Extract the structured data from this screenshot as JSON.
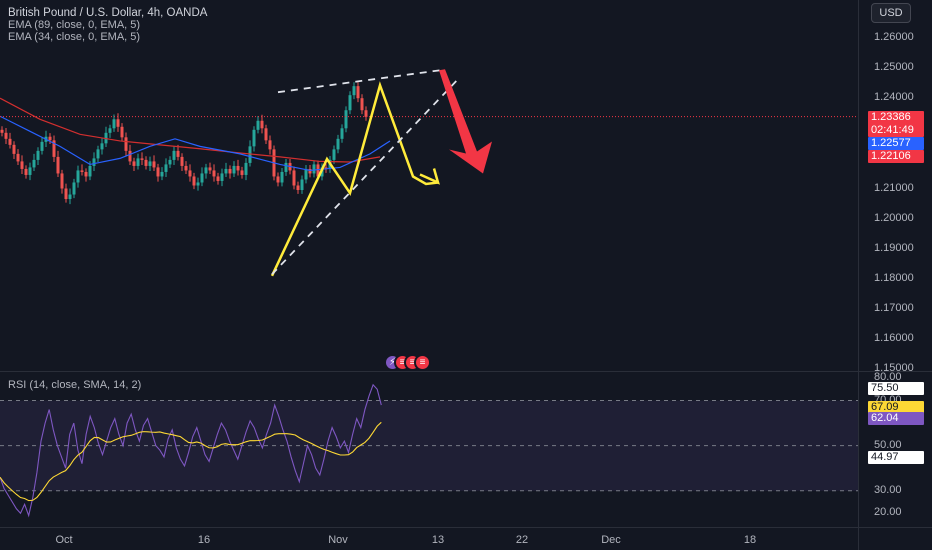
{
  "header": {
    "symbol_title": "British Pound / U.S. Dollar, 4h, OANDA",
    "ema1_label": "EMA (89, close, 0, EMA, 5)",
    "ema2_label": "EMA (34, close, 0, EMA, 5)",
    "rsi_label": "RSI (14, close, SMA, 14, 2)",
    "currency": "USD"
  },
  "colors": {
    "background": "#131722",
    "up_candle": "#26a69a",
    "down_candle": "#ef5350",
    "ema89": "#d32f2f",
    "ema34": "#2962ff",
    "rsi_line": "#7e57c2",
    "rsi_ma": "#fdd835",
    "drawing_yellow": "#ffeb3b",
    "arrow_red": "#f23645"
  },
  "events_icons": [
    "lightning-icon",
    "us-flag-icon",
    "us-flag-icon",
    "us-flag-icon"
  ],
  "chart_data": [
    {
      "type": "candlestick",
      "title": "British Pound / U.S. Dollar, 4h, OANDA",
      "ylim": [
        1.15,
        1.262
      ],
      "y_ticks": [
        "1.26000",
        "1.25000",
        "1.24000",
        "1.23000",
        "1.22000",
        "1.21000",
        "1.20000",
        "1.19000",
        "1.18000",
        "1.17000",
        "1.16000",
        "1.15000"
      ],
      "x_ticks": [
        "Oct",
        "16",
        "Nov",
        "13",
        "22",
        "Dec",
        "18"
      ],
      "price_tags": [
        {
          "label": "1.23386",
          "sub": "02:41:49",
          "value": 1.23386,
          "color": "#f23645"
        },
        {
          "label": "1.22577",
          "value": 1.22577,
          "color": "#2962ff"
        },
        {
          "label": "1.22106",
          "value": 1.22106,
          "color": "#f23645"
        }
      ],
      "series": [
        {
          "name": "EMA (89, close, 0, EMA, 5)",
          "type": "line",
          "x": [
            0,
            40,
            80,
            120,
            160,
            200,
            240,
            280,
            320,
            350,
            380
          ],
          "values": [
            1.24,
            1.233,
            1.228,
            1.2258,
            1.2245,
            1.2232,
            1.2218,
            1.2205,
            1.219,
            1.2188,
            1.2205
          ]
        },
        {
          "name": "EMA (34, close, 0, EMA, 5)",
          "type": "line",
          "x": [
            0,
            30,
            60,
            90,
            120,
            150,
            175,
            200,
            240,
            280,
            310,
            340,
            370,
            390
          ],
          "values": [
            1.234,
            1.229,
            1.224,
            1.218,
            1.22,
            1.224,
            1.2265,
            1.224,
            1.2215,
            1.218,
            1.216,
            1.217,
            1.2215,
            1.2258
          ]
        }
      ],
      "candles_close": [
        1.2285,
        1.2265,
        1.2245,
        1.2215,
        1.219,
        1.2165,
        1.2145,
        1.217,
        1.2195,
        1.2225,
        1.2255,
        1.2272,
        1.226,
        1.2205,
        1.215,
        1.21,
        1.2065,
        1.208,
        1.212,
        1.216,
        1.2155,
        1.214,
        1.2175,
        1.22,
        1.223,
        1.225,
        1.2285,
        1.23,
        1.233,
        1.2305,
        1.227,
        1.2225,
        1.219,
        1.2175,
        1.22,
        1.2195,
        1.2175,
        1.219,
        1.217,
        1.214,
        1.2155,
        1.218,
        1.2195,
        1.2225,
        1.2205,
        1.2175,
        1.216,
        1.214,
        1.211,
        1.212,
        1.215,
        1.217,
        1.216,
        1.214,
        1.2125,
        1.215,
        1.2165,
        1.215,
        1.2175,
        1.216,
        1.2145,
        1.2185,
        1.224,
        1.2295,
        1.2325,
        1.23,
        1.226,
        1.223
      ],
      "drawings": {
        "yellow_zigzag": [
          [
            1.181,
            272
          ],
          [
            1.2198,
            327
          ],
          [
            1.2085,
            350
          ],
          [
            1.2443,
            380
          ],
          [
            1.214,
            413
          ],
          [
            1.2115,
            426
          ],
          [
            1.212,
            438
          ]
        ],
        "dashed_upper": [
          [
            1.242,
            278
          ],
          [
            1.2495,
            445
          ]
        ],
        "dashed_lower": [
          [
            1.1815,
            272
          ],
          [
            1.247,
            460
          ]
        ],
        "down_arrow_from": [
          1.2493,
          442
        ],
        "down_arrow_to": [
          1.215,
          483
        ]
      }
    },
    {
      "type": "line",
      "title": "RSI (14, close, SMA, 14, 2)",
      "ylim": [
        15,
        80
      ],
      "y_ticks": [
        "80.00",
        "70.00",
        "50.00",
        "30.00",
        "20.00"
      ],
      "bands": [
        70,
        50,
        30
      ],
      "value_tags": [
        {
          "label": "75.50",
          "value": 75.5,
          "bg": "#ffffff",
          "fg": "#131722"
        },
        {
          "label": "67.09",
          "value": 67.09,
          "bg": "#fdd835",
          "fg": "#131722"
        },
        {
          "label": "62.04",
          "value": 62.04,
          "bg": "#7e57c2",
          "fg": "#ffffff"
        },
        {
          "label": "44.97",
          "value": 44.97,
          "bg": "#ffffff",
          "fg": "#131722"
        }
      ]
    }
  ]
}
